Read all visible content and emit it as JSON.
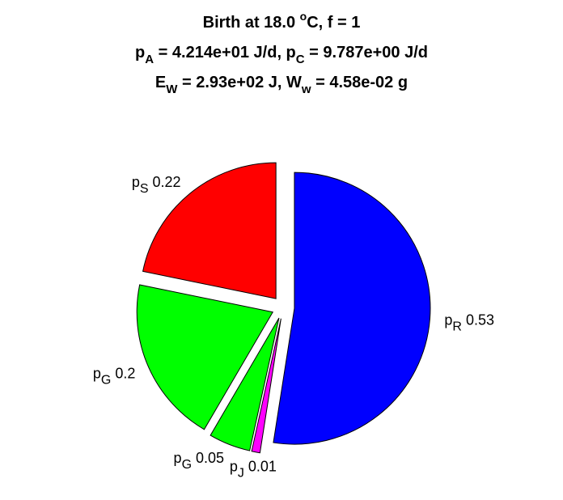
{
  "chart_data": {
    "type": "pie",
    "title": [
      [
        {
          "text": "Birth at 18.0 "
        },
        {
          "text": "o",
          "shift": "sup"
        },
        {
          "text": "C, f = 1"
        }
      ],
      [
        {
          "text": "p"
        },
        {
          "text": "A",
          "shift": "sub"
        },
        {
          "text": " = 4.214e+01 J/d, p"
        },
        {
          "text": "C",
          "shift": "sub"
        },
        {
          "text": " = 9.787e+00 J/d"
        }
      ],
      [
        {
          "text": "E"
        },
        {
          "text": "W",
          "shift": "sub"
        },
        {
          "text": " = 2.93e+02 J, W"
        },
        {
          "text": "w",
          "shift": "sub"
        },
        {
          "text": " = 4.58e-02 g"
        }
      ]
    ],
    "categories": [
      {
        "text": "p",
        "sub": "R"
      },
      {
        "text": "p",
        "sub": "J"
      },
      {
        "text": "p",
        "sub": "G"
      },
      {
        "text": "p",
        "sub": "G"
      },
      {
        "text": "p",
        "sub": "S"
      }
    ],
    "values": [
      0.53,
      0.01,
      0.05,
      0.2,
      0.22
    ],
    "colors": [
      "#0000ff",
      "#ff00ff",
      "#00ff00",
      "#00ff00",
      "#ff0000"
    ],
    "exploded": true
  }
}
